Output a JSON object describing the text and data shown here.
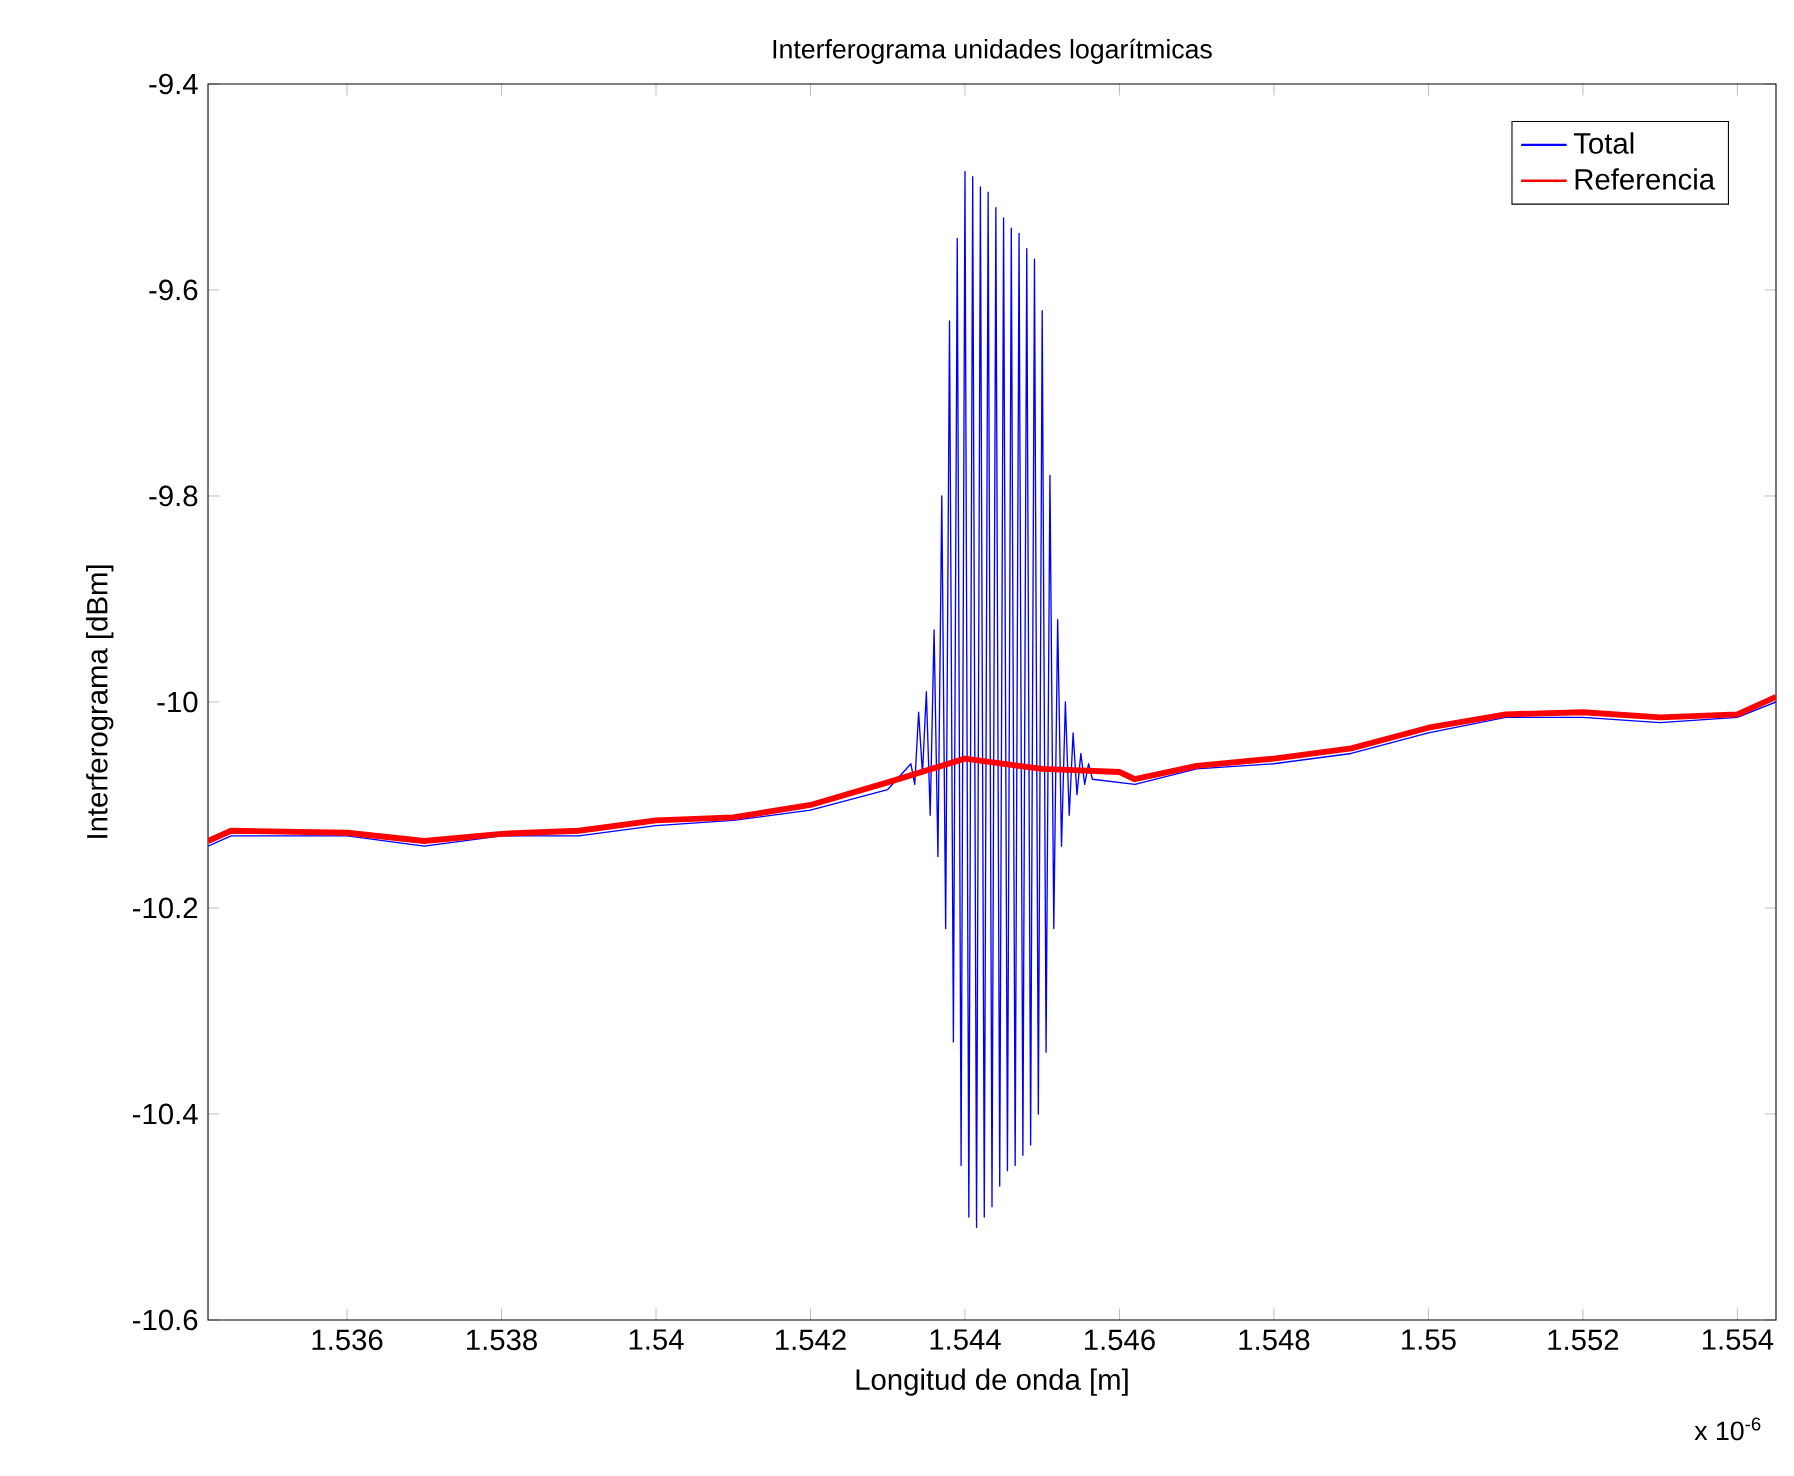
{
  "chart_data": {
    "type": "line",
    "title": "Interferograma unidades logarítmicas",
    "xlabel": "Longitud de onda [m]",
    "ylabel": "Interferograma [dBm]",
    "annotations": [
      "x 10$^{-6}$"
    ],
    "xlim": [
      1.5342,
      1.5545
    ],
    "ylim": [
      -10.6,
      -9.4
    ],
    "xticks": [
      1.536,
      1.538,
      1.54,
      1.542,
      1.544,
      1.546,
      1.548,
      1.55,
      1.552,
      1.554
    ],
    "yticks": [
      -10.6,
      -10.4,
      -10.2,
      -10,
      -9.8,
      -9.6,
      -9.4
    ],
    "grid": false,
    "legend": "top right",
    "marker": "none",
    "line_style": "solid",
    "series": [
      {
        "name": "Total",
        "color": "#0000ff",
        "x": [
          1.5342,
          1.5345,
          1.536,
          1.537,
          1.538,
          1.539,
          1.54,
          1.541,
          1.542,
          1.543,
          1.5433,
          1.54335,
          1.5434,
          1.54345,
          1.5435,
          1.54355,
          1.5436,
          1.54365,
          1.5437,
          1.54375,
          1.5438,
          1.54385,
          1.5439,
          1.54395,
          1.544,
          1.54405,
          1.5441,
          1.54415,
          1.5442,
          1.54425,
          1.5443,
          1.54435,
          1.5444,
          1.54445,
          1.5445,
          1.54455,
          1.5446,
          1.54465,
          1.5447,
          1.54475,
          1.5448,
          1.54485,
          1.5449,
          1.54495,
          1.545,
          1.54505,
          1.5451,
          1.54515,
          1.5452,
          1.54525,
          1.5453,
          1.54535,
          1.5454,
          1.54545,
          1.5455,
          1.54555,
          1.5456,
          1.54565,
          1.5462,
          1.547,
          1.548,
          1.549,
          1.55,
          1.551,
          1.552,
          1.553,
          1.554,
          1.5545
        ],
        "values": [
          -10.14,
          -10.13,
          -10.13,
          -10.14,
          -10.13,
          -10.13,
          -10.12,
          -10.115,
          -10.105,
          -10.085,
          -10.06,
          -10.08,
          -10.01,
          -10.07,
          -9.99,
          -10.11,
          -9.93,
          -10.15,
          -9.8,
          -10.22,
          -9.63,
          -10.33,
          -9.55,
          -10.45,
          -9.485,
          -10.5,
          -9.49,
          -10.51,
          -9.5,
          -10.5,
          -9.505,
          -10.49,
          -9.52,
          -10.47,
          -9.53,
          -10.455,
          -9.54,
          -10.45,
          -9.545,
          -10.44,
          -9.56,
          -10.43,
          -9.57,
          -10.4,
          -9.62,
          -10.34,
          -9.78,
          -10.22,
          -9.92,
          -10.14,
          -10.0,
          -10.11,
          -10.03,
          -10.09,
          -10.05,
          -10.08,
          -10.06,
          -10.075,
          -10.08,
          -10.065,
          -10.06,
          -10.05,
          -10.03,
          -10.015,
          -10.015,
          -10.02,
          -10.015,
          -10.0
        ]
      },
      {
        "name": "Referencia",
        "color": "#ff0000",
        "x": [
          1.5342,
          1.5345,
          1.536,
          1.537,
          1.538,
          1.539,
          1.54,
          1.541,
          1.542,
          1.543,
          1.544,
          1.545,
          1.546,
          1.5462,
          1.547,
          1.548,
          1.549,
          1.55,
          1.551,
          1.552,
          1.553,
          1.554,
          1.5545
        ],
        "values": [
          -10.135,
          -10.125,
          -10.127,
          -10.135,
          -10.128,
          -10.125,
          -10.115,
          -10.112,
          -10.1,
          -10.078,
          -10.055,
          -10.065,
          -10.068,
          -10.075,
          -10.062,
          -10.055,
          -10.045,
          -10.025,
          -10.012,
          -10.01,
          -10.015,
          -10.012,
          -9.995
        ]
      }
    ]
  }
}
